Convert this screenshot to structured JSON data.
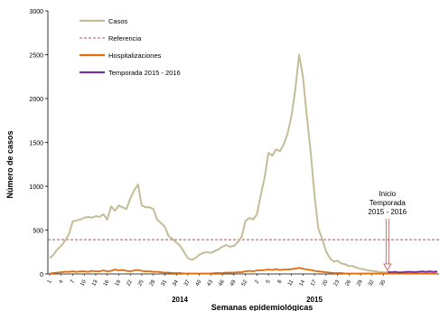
{
  "chart_data": {
    "type": "line",
    "xlabel": "Semanas epidemiológicas",
    "ylabel": "Número de casos",
    "ylim": [
      0,
      3000
    ],
    "yticks": [
      0,
      500,
      1000,
      1500,
      2000,
      2500,
      3000
    ],
    "xticks": [
      "1",
      "4",
      "7",
      "10",
      "13",
      "16",
      "19",
      "22",
      "25",
      "28",
      "31",
      "34",
      "37",
      "40",
      "43",
      "46",
      "49",
      "52",
      "2",
      "5",
      "8",
      "11",
      "14",
      "17",
      "20",
      "23",
      "26",
      "29",
      "32",
      "35"
    ],
    "year_labels": [
      "2014",
      "2015"
    ],
    "annotation": {
      "lines": [
        "Inicio",
        "Temporada",
        "2015 - 2016"
      ]
    },
    "legend": {
      "position": "top-left"
    },
    "reference_value": 390,
    "series": [
      {
        "name": "Casos",
        "color": "#c4bd97",
        "values": [
          180,
          220,
          280,
          320,
          380,
          450,
          600,
          610,
          620,
          640,
          650,
          640,
          660,
          650,
          680,
          620,
          770,
          720,
          780,
          760,
          740,
          860,
          950,
          1020,
          780,
          760,
          760,
          740,
          620,
          580,
          540,
          430,
          400,
          360,
          320,
          250,
          180,
          160,
          180,
          220,
          240,
          250,
          240,
          260,
          280,
          310,
          330,
          310,
          320,
          360,
          420,
          600,
          640,
          620,
          680,
          900,
          1100,
          1380,
          1350,
          1420,
          1400,
          1480,
          1600,
          1800,
          2100,
          2500,
          2250,
          1800,
          1400,
          900,
          520,
          400,
          260,
          180,
          140,
          150,
          120,
          110,
          90,
          90,
          70,
          60,
          50,
          40,
          35,
          30,
          20,
          20,
          15,
          15,
          15,
          20,
          20,
          20,
          25,
          25,
          20,
          20,
          20,
          20,
          20,
          25
        ]
      },
      {
        "name": "Hospitalizaciones",
        "color": "#e36c09",
        "values": [
          5,
          10,
          15,
          20,
          25,
          25,
          30,
          25,
          30,
          30,
          25,
          35,
          30,
          30,
          40,
          30,
          35,
          50,
          40,
          45,
          35,
          30,
          40,
          45,
          35,
          30,
          30,
          25,
          25,
          20,
          15,
          15,
          10,
          10,
          10,
          5,
          5,
          5,
          5,
          5,
          5,
          5,
          5,
          10,
          10,
          10,
          15,
          15,
          15,
          20,
          20,
          30,
          35,
          30,
          40,
          40,
          45,
          50,
          45,
          55,
          45,
          50,
          50,
          55,
          60,
          70,
          60,
          50,
          45,
          35,
          30,
          25,
          20,
          15,
          10,
          10,
          10,
          5,
          5,
          5,
          5,
          5,
          5,
          5,
          5,
          5,
          5,
          5,
          5,
          5,
          5,
          5,
          5,
          5,
          5,
          5,
          5,
          5,
          5,
          5,
          5,
          5
        ]
      },
      {
        "name": "Temporada 2015 - 2016",
        "color": "#7030a0",
        "start_index": 88,
        "values": [
          25,
          20,
          25,
          15,
          20,
          25,
          25,
          20,
          25,
          30,
          25,
          30,
          25,
          30
        ]
      },
      {
        "name": "Referencia",
        "color": "#c0504d",
        "dashed": true,
        "constant": 390
      }
    ]
  }
}
